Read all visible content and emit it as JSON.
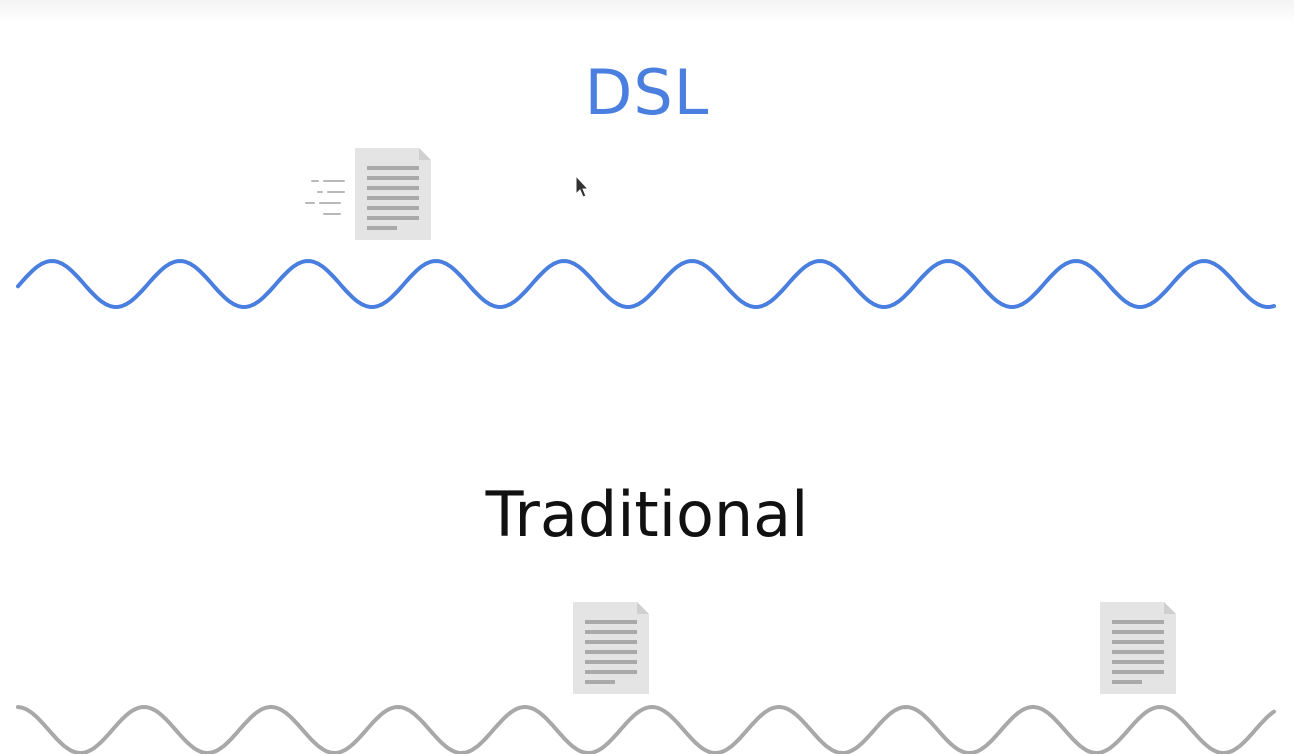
{
  "titles": {
    "top": "DSL",
    "bottom": "Traditional"
  },
  "colors": {
    "dsl_wave": "#4a7fe0",
    "traditional_wave": "#a8a8a8",
    "document_fill": "#e4e4e4",
    "document_lines": "#a9a9a9"
  },
  "icons": {
    "document": "document-icon",
    "motion_lines": "motion-lines-icon",
    "pointer": "mouse-pointer-icon"
  }
}
